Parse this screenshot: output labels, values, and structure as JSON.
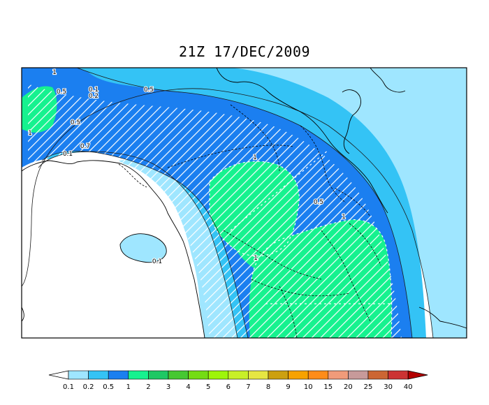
{
  "title": "21Z 17/DEC/2009",
  "colors": {
    "c_0_1": "#9fe6ff",
    "c_0_2": "#34c3f5",
    "c_0_5": "#1b7ff0",
    "c_1": "#16f28f",
    "c_2": "#1ec864",
    "c_3": "#46c832",
    "c_4": "#74dc14",
    "c_5": "#9ef50a",
    "c_6": "#c8ef28",
    "c_7": "#e6e642",
    "c_8": "#cca010",
    "c_9": "#f7a200",
    "c_10": "#ff8c19",
    "c_15": "#f09b7a",
    "c_20": "#c79a9a",
    "c_25": "#cc6633",
    "c_30": "#cc3333",
    "c_40": "#ff1a1a",
    "c_over": "#b40000"
  },
  "contour_labels": [
    {
      "text": "1",
      "id": "nw-1"
    },
    {
      "text": "0.5",
      "id": "nw-05a"
    },
    {
      "text": "0.1",
      "id": "top-01"
    },
    {
      "text": "0.2",
      "id": "top-02"
    },
    {
      "text": "0.5",
      "id": "top-05"
    },
    {
      "text": "0.5",
      "id": "w-05"
    },
    {
      "text": "1",
      "id": "w-1"
    },
    {
      "text": "0.7",
      "id": "w-07"
    },
    {
      "text": "0.1",
      "id": "w-01"
    },
    {
      "text": "1",
      "id": "c-1"
    },
    {
      "text": "0.5",
      "id": "e-05"
    },
    {
      "text": "1",
      "id": "se-1"
    },
    {
      "text": "1",
      "id": "s-1"
    },
    {
      "text": "0.1",
      "id": "s-01"
    }
  ],
  "colorbar": {
    "ticks": [
      "0.1",
      "0.2",
      "0.5",
      "1",
      "2",
      "3",
      "4",
      "5",
      "6",
      "7",
      "8",
      "9",
      "10",
      "15",
      "20",
      "25",
      "30",
      "40"
    ]
  }
}
